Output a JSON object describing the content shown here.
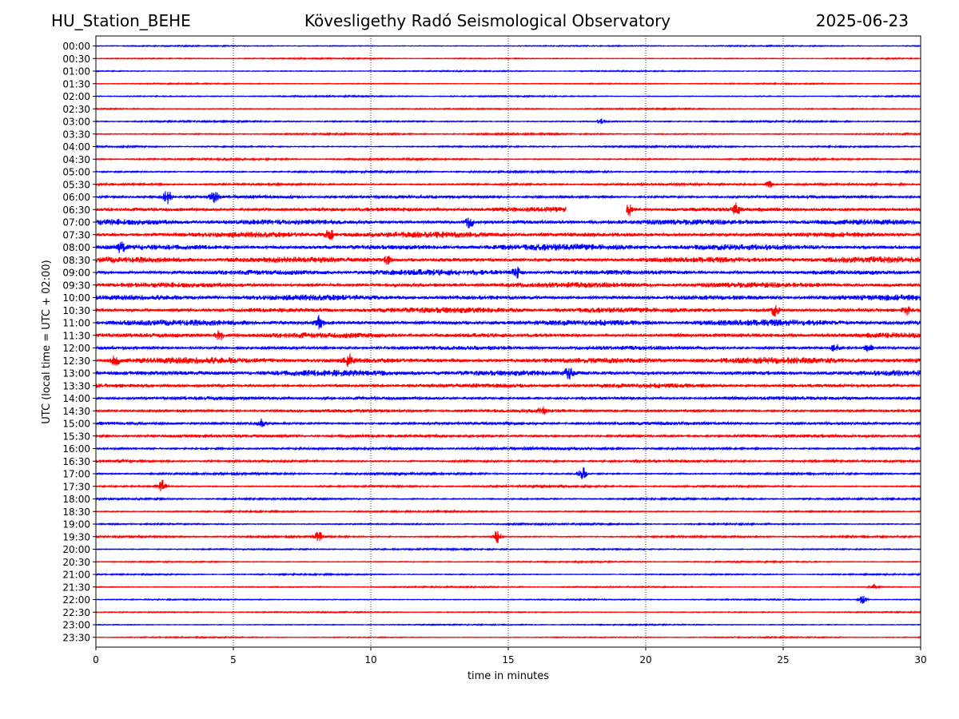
{
  "header": {
    "station": "HU_Station_BEHE",
    "observatory": "Kövesligethy Radó Seismological Observatory",
    "date": "2025-06-23"
  },
  "chart_data": {
    "type": "line",
    "xlabel": "time in minutes",
    "ylabel": "UTC (local time = UTC + 02:00)",
    "xlim": [
      0,
      30
    ],
    "xticks": [
      "0",
      "5",
      "10",
      "15",
      "20",
      "25",
      "30"
    ],
    "vertical_gridlines_at": [
      5,
      10,
      15,
      20,
      25
    ],
    "colors": {
      "even_rows": "#0000ff",
      "odd_rows": "#ff0000"
    },
    "rows": [
      {
        "label": "00:00",
        "noise": 0.6
      },
      {
        "label": "00:30",
        "noise": 0.6
      },
      {
        "label": "01:00",
        "noise": 0.6
      },
      {
        "label": "01:30",
        "noise": 0.6
      },
      {
        "label": "02:00",
        "noise": 0.7
      },
      {
        "label": "02:30",
        "noise": 0.7
      },
      {
        "label": "03:00",
        "noise": 0.8
      },
      {
        "label": "03:30",
        "noise": 0.9
      },
      {
        "label": "04:00",
        "noise": 0.9
      },
      {
        "label": "04:30",
        "noise": 1.0
      },
      {
        "label": "05:00",
        "noise": 1.1
      },
      {
        "label": "05:30",
        "noise": 1.2
      },
      {
        "label": "06:00",
        "noise": 1.8
      },
      {
        "label": "06:30",
        "noise": 2.6
      },
      {
        "label": "07:00",
        "noise": 3.0
      },
      {
        "label": "07:30",
        "noise": 3.2
      },
      {
        "label": "08:00",
        "noise": 3.4
      },
      {
        "label": "08:30",
        "noise": 3.3
      },
      {
        "label": "09:00",
        "noise": 3.2
      },
      {
        "label": "09:30",
        "noise": 3.0
      },
      {
        "label": "10:00",
        "noise": 3.0
      },
      {
        "label": "10:30",
        "noise": 3.1
      },
      {
        "label": "11:00",
        "noise": 3.4
      },
      {
        "label": "11:30",
        "noise": 2.8
      },
      {
        "label": "12:00",
        "noise": 2.2
      },
      {
        "label": "12:30",
        "noise": 3.5
      },
      {
        "label": "13:00",
        "noise": 3.2
      },
      {
        "label": "13:30",
        "noise": 2.5
      },
      {
        "label": "14:00",
        "noise": 1.9
      },
      {
        "label": "14:30",
        "noise": 1.8
      },
      {
        "label": "15:00",
        "noise": 1.7
      },
      {
        "label": "15:30",
        "noise": 1.7
      },
      {
        "label": "16:00",
        "noise": 1.5
      },
      {
        "label": "16:30",
        "noise": 1.4
      },
      {
        "label": "17:00",
        "noise": 1.2
      },
      {
        "label": "17:30",
        "noise": 1.1
      },
      {
        "label": "18:00",
        "noise": 1.0
      },
      {
        "label": "18:30",
        "noise": 0.9
      },
      {
        "label": "19:00",
        "noise": 0.9
      },
      {
        "label": "19:30",
        "noise": 1.0
      },
      {
        "label": "20:00",
        "noise": 0.8
      },
      {
        "label": "20:30",
        "noise": 0.7
      },
      {
        "label": "21:00",
        "noise": 0.7
      },
      {
        "label": "21:30",
        "noise": 0.7
      },
      {
        "label": "22:00",
        "noise": 0.6
      },
      {
        "label": "22:30",
        "noise": 0.6
      },
      {
        "label": "23:00",
        "noise": 0.6
      },
      {
        "label": "23:30",
        "noise": 0.6
      }
    ],
    "events": [
      {
        "row": "03:00",
        "t": 18.4,
        "amp": 4
      },
      {
        "row": "05:30",
        "t": 24.5,
        "amp": 4
      },
      {
        "row": "06:00",
        "t": 2.6,
        "amp": 9
      },
      {
        "row": "06:00",
        "t": 4.3,
        "amp": 7
      },
      {
        "row": "06:30",
        "t": 19.3,
        "amp": 14
      },
      {
        "row": "06:30",
        "t": 23.3,
        "amp": 7
      },
      {
        "row": "07:00",
        "t": 13.6,
        "amp": 7
      },
      {
        "row": "07:30",
        "t": 8.5,
        "amp": 8
      },
      {
        "row": "08:00",
        "t": 0.9,
        "amp": 6
      },
      {
        "row": "08:30",
        "t": 10.6,
        "amp": 5
      },
      {
        "row": "09:00",
        "t": 15.3,
        "amp": 6
      },
      {
        "row": "10:30",
        "t": 24.7,
        "amp": 7
      },
      {
        "row": "10:30",
        "t": 29.5,
        "amp": 5
      },
      {
        "row": "11:00",
        "t": 8.1,
        "amp": 8
      },
      {
        "row": "11:30",
        "t": 4.5,
        "amp": 6
      },
      {
        "row": "12:00",
        "t": 26.9,
        "amp": 6
      },
      {
        "row": "12:00",
        "t": 28.1,
        "amp": 5
      },
      {
        "row": "12:30",
        "t": 0.7,
        "amp": 7
      },
      {
        "row": "12:30",
        "t": 9.2,
        "amp": 7
      },
      {
        "row": "13:00",
        "t": 17.2,
        "amp": 6
      },
      {
        "row": "14:30",
        "t": 16.2,
        "amp": 5
      },
      {
        "row": "15:00",
        "t": 6.0,
        "amp": 6
      },
      {
        "row": "17:00",
        "t": 17.7,
        "amp": 8
      },
      {
        "row": "17:30",
        "t": 2.4,
        "amp": 8
      },
      {
        "row": "19:30",
        "t": 8.1,
        "amp": 6
      },
      {
        "row": "19:30",
        "t": 14.6,
        "amp": 8
      },
      {
        "row": "21:30",
        "t": 28.3,
        "amp": 4
      },
      {
        "row": "22:00",
        "t": 27.9,
        "amp": 6
      }
    ],
    "gaps": [
      {
        "row": "06:30",
        "start": 17.1,
        "end": 19.3
      }
    ]
  }
}
